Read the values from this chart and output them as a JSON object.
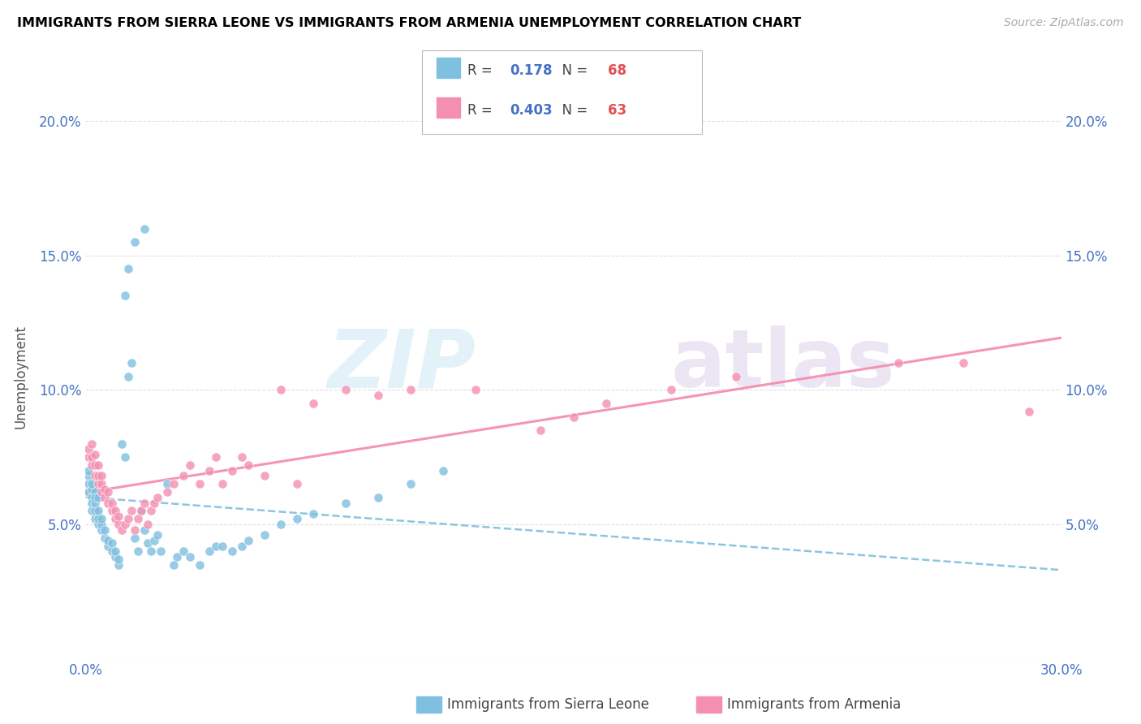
{
  "title": "IMMIGRANTS FROM SIERRA LEONE VS IMMIGRANTS FROM ARMENIA UNEMPLOYMENT CORRELATION CHART",
  "source": "Source: ZipAtlas.com",
  "ylabel": "Unemployment",
  "xmin": 0.0,
  "xmax": 0.3,
  "ymin": 0.0,
  "ymax": 0.21,
  "legend1_label": "Immigrants from Sierra Leone",
  "legend2_label": "Immigrants from Armenia",
  "r1_label": "0.178",
  "n1_label": "68",
  "r2_label": "0.403",
  "n2_label": "63",
  "color_sl": "#7fbfdf",
  "color_arm": "#f48fb1",
  "color_blue_text": "#4472c4",
  "color_red_text": "#e05050",
  "sierra_leone_x": [
    0.001,
    0.001,
    0.001,
    0.001,
    0.002,
    0.002,
    0.002,
    0.002,
    0.002,
    0.003,
    0.003,
    0.003,
    0.003,
    0.003,
    0.004,
    0.004,
    0.004,
    0.004,
    0.005,
    0.005,
    0.005,
    0.006,
    0.006,
    0.007,
    0.007,
    0.008,
    0.008,
    0.009,
    0.009,
    0.01,
    0.01,
    0.011,
    0.012,
    0.013,
    0.014,
    0.015,
    0.016,
    0.017,
    0.018,
    0.019,
    0.02,
    0.021,
    0.022,
    0.023,
    0.025,
    0.027,
    0.028,
    0.03,
    0.032,
    0.035,
    0.038,
    0.04,
    0.042,
    0.045,
    0.048,
    0.05,
    0.055,
    0.06,
    0.065,
    0.07,
    0.08,
    0.09,
    0.1,
    0.11,
    0.018,
    0.015,
    0.013,
    0.012
  ],
  "sierra_leone_y": [
    0.068,
    0.065,
    0.07,
    0.062,
    0.06,
    0.058,
    0.063,
    0.065,
    0.055,
    0.052,
    0.055,
    0.058,
    0.062,
    0.06,
    0.05,
    0.052,
    0.055,
    0.06,
    0.048,
    0.05,
    0.052,
    0.045,
    0.048,
    0.042,
    0.044,
    0.04,
    0.043,
    0.038,
    0.04,
    0.035,
    0.037,
    0.08,
    0.075,
    0.105,
    0.11,
    0.045,
    0.04,
    0.055,
    0.048,
    0.043,
    0.04,
    0.044,
    0.046,
    0.04,
    0.065,
    0.035,
    0.038,
    0.04,
    0.038,
    0.035,
    0.04,
    0.042,
    0.042,
    0.04,
    0.042,
    0.044,
    0.046,
    0.05,
    0.052,
    0.054,
    0.058,
    0.06,
    0.065,
    0.07,
    0.16,
    0.155,
    0.145,
    0.135
  ],
  "armenia_x": [
    0.001,
    0.001,
    0.002,
    0.002,
    0.002,
    0.003,
    0.003,
    0.003,
    0.004,
    0.004,
    0.004,
    0.005,
    0.005,
    0.005,
    0.006,
    0.006,
    0.007,
    0.007,
    0.008,
    0.008,
    0.009,
    0.009,
    0.01,
    0.01,
    0.011,
    0.012,
    0.013,
    0.014,
    0.015,
    0.016,
    0.017,
    0.018,
    0.019,
    0.02,
    0.021,
    0.022,
    0.025,
    0.027,
    0.03,
    0.032,
    0.035,
    0.038,
    0.04,
    0.042,
    0.045,
    0.048,
    0.05,
    0.055,
    0.06,
    0.065,
    0.07,
    0.08,
    0.09,
    0.1,
    0.12,
    0.14,
    0.15,
    0.16,
    0.18,
    0.2,
    0.25,
    0.27,
    0.29
  ],
  "armenia_y": [
    0.075,
    0.078,
    0.072,
    0.075,
    0.08,
    0.068,
    0.072,
    0.076,
    0.065,
    0.068,
    0.072,
    0.062,
    0.065,
    0.068,
    0.06,
    0.063,
    0.058,
    0.062,
    0.055,
    0.058,
    0.052,
    0.055,
    0.05,
    0.053,
    0.048,
    0.05,
    0.052,
    0.055,
    0.048,
    0.052,
    0.055,
    0.058,
    0.05,
    0.055,
    0.058,
    0.06,
    0.062,
    0.065,
    0.068,
    0.072,
    0.065,
    0.07,
    0.075,
    0.065,
    0.07,
    0.075,
    0.072,
    0.068,
    0.1,
    0.065,
    0.095,
    0.1,
    0.098,
    0.1,
    0.1,
    0.085,
    0.09,
    0.095,
    0.1,
    0.105,
    0.11,
    0.11,
    0.092
  ]
}
